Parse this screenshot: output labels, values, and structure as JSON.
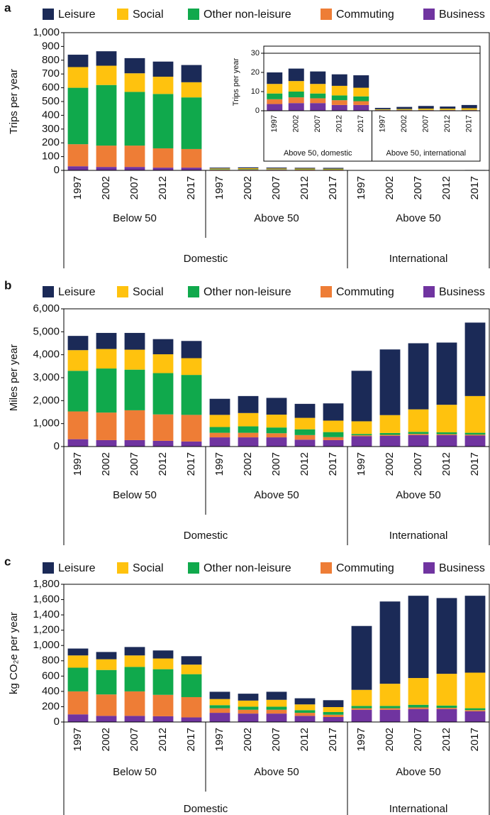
{
  "chart_data": [
    {
      "type": "bar",
      "stacked": true,
      "panel_label": "a",
      "y_label": "Trips per year",
      "categories": [
        "1997",
        "2002",
        "2007",
        "2012",
        "2017",
        "1997",
        "2002",
        "2007",
        "2012",
        "2017",
        "1997",
        "2002",
        "2007",
        "2012",
        "2017"
      ],
      "groups": [
        "Below 50",
        "Above 50",
        "Above 50"
      ],
      "super_groups": [
        "Domestic",
        "International"
      ],
      "ylim": [
        0,
        1000
      ],
      "yticks": [
        0,
        100,
        200,
        300,
        400,
        500,
        600,
        700,
        800,
        900,
        {
          "value": 1000,
          "label": "1,000"
        }
      ],
      "series": [
        {
          "name": "Leisure",
          "color": "#1b2a57",
          "values": [
            90,
            105,
            110,
            110,
            125,
            6,
            6.5,
            6.5,
            6,
            6.5,
            0.7,
            1.1,
            1.4,
            1.1,
            1.7
          ]
        },
        {
          "name": "Social",
          "color": "#ffc20e",
          "values": [
            150,
            140,
            135,
            125,
            110,
            5,
            5.5,
            5,
            5,
            4.5,
            0.3,
            0.4,
            0.6,
            0.6,
            0.8
          ]
        },
        {
          "name": "Other non-leisure",
          "color": "#10a94c",
          "values": [
            410,
            440,
            390,
            395,
            375,
            3,
            3,
            2.5,
            2.5,
            2.5,
            0.1,
            0.1,
            0.1,
            0.1,
            0.1
          ]
        },
        {
          "name": "Commuting",
          "color": "#ee7d36",
          "values": [
            160,
            155,
            155,
            140,
            135,
            2.5,
            3,
            2.5,
            2.5,
            2,
            0.1,
            0.1,
            0.1,
            0.1,
            0.1
          ]
        },
        {
          "name": "Business",
          "color": "#7034a0",
          "values": [
            30,
            25,
            25,
            20,
            20,
            3.5,
            4,
            4,
            3,
            3,
            0.3,
            0.3,
            0.3,
            0.3,
            0.3
          ]
        }
      ]
    },
    {
      "type": "bar",
      "stacked": true,
      "panel_label": "b",
      "y_label": "Miles per year",
      "categories": [
        "1997",
        "2002",
        "2007",
        "2012",
        "2017",
        "1997",
        "2002",
        "2007",
        "2012",
        "2017",
        "1997",
        "2002",
        "2007",
        "2012",
        "2017"
      ],
      "groups": [
        "Below 50",
        "Above 50",
        "Above 50"
      ],
      "super_groups": [
        "Domestic",
        "International"
      ],
      "ylim": [
        0,
        6000
      ],
      "yticks": [
        0,
        {
          "value": 1000,
          "label": "1,000"
        },
        {
          "value": 2000,
          "label": "2,000"
        },
        {
          "value": 3000,
          "label": "3,000"
        },
        {
          "value": 4000,
          "label": "4,000"
        },
        {
          "value": 5000,
          "label": "5,000"
        },
        {
          "value": 6000,
          "label": "6,000"
        }
      ],
      "series": [
        {
          "name": "Leisure",
          "color": "#1b2a57",
          "values": [
            620,
            700,
            730,
            660,
            750,
            700,
            740,
            730,
            610,
            750,
            2200,
            2860,
            2880,
            2710,
            3200
          ]
        },
        {
          "name": "Social",
          "color": "#ffc20e",
          "values": [
            900,
            850,
            870,
            820,
            730,
            530,
            580,
            560,
            500,
            500,
            550,
            780,
            980,
            1200,
            1600
          ]
        },
        {
          "name": "Other non-leisure",
          "color": "#10a94c",
          "values": [
            1770,
            1920,
            1770,
            1800,
            1740,
            250,
            280,
            250,
            250,
            220,
            60,
            80,
            90,
            80,
            80
          ]
        },
        {
          "name": "Commuting",
          "color": "#ee7d36",
          "values": [
            1210,
            1200,
            1300,
            1150,
            1160,
            200,
            200,
            180,
            200,
            130,
            40,
            40,
            50,
            40,
            40
          ]
        },
        {
          "name": "Business",
          "color": "#7034a0",
          "values": [
            320,
            280,
            280,
            250,
            220,
            400,
            400,
            400,
            300,
            280,
            450,
            470,
            500,
            500,
            480
          ]
        }
      ]
    },
    {
      "type": "bar",
      "stacked": true,
      "panel_label": "c",
      "y_label": "kg CO₂e per year",
      "categories": [
        "1997",
        "2002",
        "2007",
        "2012",
        "2017",
        "1997",
        "2002",
        "2007",
        "2012",
        "2017",
        "1997",
        "2002",
        "2007",
        "2012",
        "2017"
      ],
      "groups": [
        "Below 50",
        "Above 50",
        "Above 50"
      ],
      "super_groups": [
        "Domestic",
        "International"
      ],
      "ylim": [
        0,
        1800
      ],
      "yticks": [
        0,
        200,
        400,
        600,
        800,
        {
          "value": 1000,
          "label": "1,000"
        },
        {
          "value": 1200,
          "label": "1,200"
        },
        {
          "value": 1400,
          "label": "1,400"
        },
        {
          "value": 1600,
          "label": "1,600"
        },
        {
          "value": 1800,
          "label": "1,800"
        }
      ],
      "series": [
        {
          "name": "Leisure",
          "color": "#1b2a57",
          "values": [
            90,
            95,
            110,
            105,
            110,
            95,
            90,
            105,
            80,
            90,
            835,
            1075,
            1075,
            990,
            1005
          ]
        },
        {
          "name": "Social",
          "color": "#ffc20e",
          "values": [
            160,
            140,
            150,
            140,
            125,
            80,
            80,
            90,
            75,
            65,
            210,
            290,
            350,
            415,
            465
          ]
        },
        {
          "name": "Other non-leisure",
          "color": "#10a94c",
          "values": [
            310,
            320,
            320,
            335,
            300,
            40,
            40,
            40,
            35,
            35,
            30,
            30,
            35,
            30,
            25
          ]
        },
        {
          "name": "Commuting",
          "color": "#ee7d36",
          "values": [
            300,
            280,
            320,
            280,
            265,
            60,
            50,
            50,
            40,
            30,
            20,
            20,
            20,
            15,
            15
          ]
        },
        {
          "name": "Business",
          "color": "#7034a0",
          "values": [
            100,
            80,
            80,
            75,
            60,
            120,
            110,
            110,
            80,
            65,
            160,
            160,
            170,
            170,
            140
          ]
        }
      ]
    },
    {
      "type": "bar",
      "stacked": true,
      "y_label": "Trips per year",
      "categories": [
        "1997",
        "2002",
        "2007",
        "2012",
        "2017",
        "1997",
        "2002",
        "2007",
        "2012",
        "2017"
      ],
      "groups": [
        "Above 50, domestic",
        "Above 50, international"
      ],
      "ylim": [
        0,
        30
      ],
      "yticks": [
        0,
        10,
        20,
        30
      ],
      "series": [
        {
          "name": "Leisure",
          "color": "#1b2a57",
          "values": [
            6,
            6.5,
            6.5,
            6,
            6.5,
            0.7,
            1.1,
            1.4,
            1.1,
            1.7
          ]
        },
        {
          "name": "Social",
          "color": "#ffc20e",
          "values": [
            5,
            5.5,
            5,
            5,
            4.5,
            0.3,
            0.4,
            0.6,
            0.6,
            0.8
          ]
        },
        {
          "name": "Other non-leisure",
          "color": "#10a94c",
          "values": [
            3,
            3,
            2.5,
            2.5,
            2.5,
            0.1,
            0.1,
            0.1,
            0.1,
            0.1
          ]
        },
        {
          "name": "Commuting",
          "color": "#ee7d36",
          "values": [
            2.5,
            3,
            2.5,
            2.5,
            2,
            0.1,
            0.1,
            0.1,
            0.1,
            0.1
          ]
        },
        {
          "name": "Business",
          "color": "#7034a0",
          "values": [
            3.5,
            4,
            4,
            3,
            3,
            0.3,
            0.3,
            0.3,
            0.3,
            0.3
          ]
        }
      ]
    }
  ]
}
